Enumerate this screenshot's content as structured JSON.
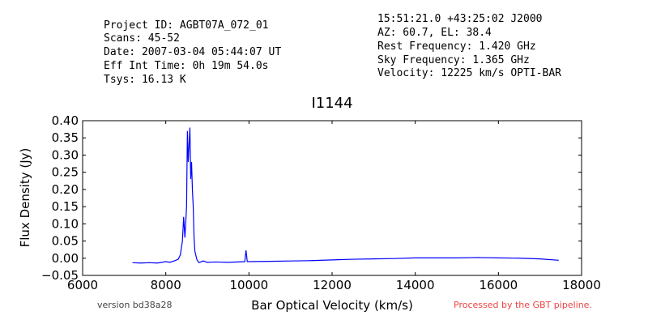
{
  "header": {
    "left": [
      "Project ID: AGBT07A_072_01",
      "Scans: 45-52",
      "Date: 2007-03-04 05:44:07 UT",
      "Eff Int Time: 0h 19m 54.0s",
      "Tsys: 16.13 K"
    ],
    "right": [
      "15:51:21.0 +43:25:02 J2000",
      "AZ: 60.7, EL: 38.4",
      "Rest Frequency:   1.420 GHz",
      "Sky Frequency:    1.365 GHz",
      "Velocity: 12225 km/s OPTI-BAR"
    ]
  },
  "footer": {
    "version": "version bd38a28",
    "pipeline": "Processed by the GBT pipeline."
  },
  "chart_data": {
    "type": "line",
    "title": "I1144",
    "x_label": "Bar Optical Velocity (km/s)",
    "y_label": "Flux Density (Jy)",
    "xlim": [
      6000,
      18000
    ],
    "xticks": [
      6000,
      8000,
      10000,
      12000,
      14000,
      16000,
      18000
    ],
    "ylim": [
      -0.05,
      0.4
    ],
    "yticks": [
      {
        "value": -0.05,
        "label": "−0.05"
      },
      {
        "value": 0.0,
        "label": "0.00"
      },
      {
        "value": 0.05,
        "label": "0.05"
      },
      {
        "value": 0.1,
        "label": "0.10"
      },
      {
        "value": 0.15,
        "label": "0.15"
      },
      {
        "value": 0.2,
        "label": "0.20"
      },
      {
        "value": 0.25,
        "label": "0.25"
      },
      {
        "value": 0.3,
        "label": "0.30"
      },
      {
        "value": 0.35,
        "label": "0.35"
      },
      {
        "value": 0.4,
        "label": "0.40"
      }
    ],
    "series": [
      {
        "color": "#0000ff",
        "x": [
          7200,
          7400,
          7600,
          7800,
          8000,
          8100,
          8200,
          8300,
          8350,
          8400,
          8430,
          8460,
          8500,
          8520,
          8540,
          8560,
          8580,
          8600,
          8620,
          8640,
          8660,
          8680,
          8700,
          8750,
          8800,
          8900,
          9000,
          9200,
          9500,
          9900,
          9930,
          9960,
          10500,
          11000,
          11500,
          12000,
          12500,
          13000,
          13500,
          14000,
          14500,
          15000,
          15500,
          16000,
          16500,
          17000,
          17450
        ],
        "values": [
          -0.013,
          -0.014,
          -0.013,
          -0.014,
          -0.01,
          -0.012,
          -0.008,
          -0.003,
          0.01,
          0.05,
          0.12,
          0.06,
          0.15,
          0.37,
          0.28,
          0.33,
          0.38,
          0.23,
          0.28,
          0.2,
          0.15,
          0.06,
          0.02,
          -0.005,
          -0.013,
          -0.008,
          -0.012,
          -0.011,
          -0.012,
          -0.01,
          0.023,
          -0.01,
          -0.009,
          -0.008,
          -0.007,
          -0.005,
          -0.003,
          -0.002,
          -0.001,
          0.001,
          0.001,
          0.001,
          0.002,
          0.001,
          0.0,
          -0.002,
          -0.006
        ]
      }
    ]
  }
}
